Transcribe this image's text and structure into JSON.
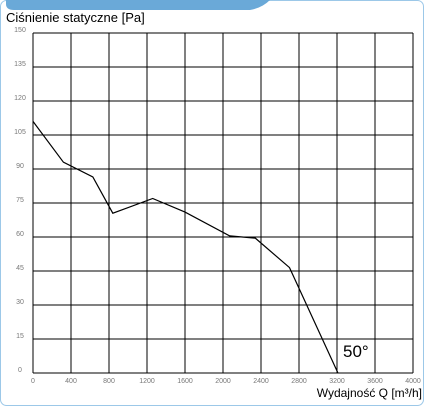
{
  "chart_data": {
    "type": "line",
    "title": "Ciśnienie statyczne [Pa]",
    "xlabel": "Wydajność Q [m³/h]",
    "annotation": "50°",
    "x": [
      0,
      320,
      630,
      840,
      1260,
      1600,
      2070,
      2340,
      2700,
      3210
    ],
    "series": [
      {
        "name": "50°",
        "color": "#000000",
        "values": [
          111,
          93,
          86.5,
          70.5,
          77,
          71,
          60.5,
          59.5,
          46.5,
          0
        ]
      }
    ],
    "xlim": [
      0,
      4000
    ],
    "xticks": [
      0,
      400,
      800,
      1200,
      1600,
      2000,
      2400,
      2800,
      3200,
      3600,
      4000
    ],
    "ylim": [
      0,
      150
    ],
    "yticks": [
      0,
      15,
      30,
      45,
      60,
      75,
      90,
      105,
      120,
      135,
      150
    ],
    "grid": true
  }
}
